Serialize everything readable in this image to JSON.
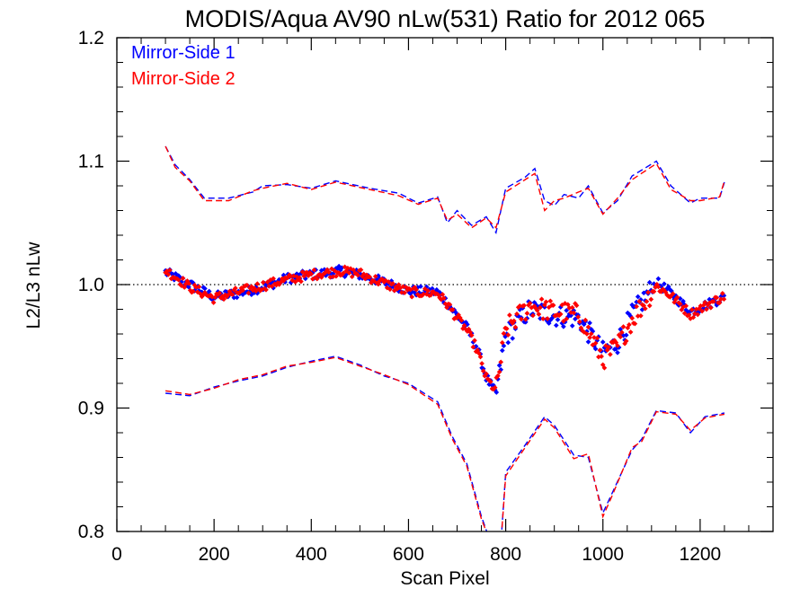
{
  "chart_data": {
    "type": "scatter",
    "title": "MODIS/Aqua AV90 nLw(531) Ratio for 2012 065",
    "xlabel": "Scan Pixel",
    "ylabel": "L2/L3 nLw",
    "xlim": [
      0,
      1350
    ],
    "ylim": [
      0.8,
      1.2
    ],
    "x_ticks": [
      0,
      200,
      400,
      600,
      800,
      1000,
      1200
    ],
    "y_ticks": [
      0.8,
      0.9,
      1.0,
      1.1,
      1.2
    ],
    "x_minor_step": 50,
    "y_minor_step": 0.02,
    "reference_line": 1.0,
    "legend_position": "top-left",
    "series": [
      {
        "name": "Mirror-Side 1",
        "color": "#0000ff",
        "points_mean": [
          [
            100,
            1.01
          ],
          [
            150,
            1.0
          ],
          [
            200,
            0.99
          ],
          [
            250,
            0.993
          ],
          [
            300,
            0.998
          ],
          [
            350,
            1.005
          ],
          [
            400,
            1.008
          ],
          [
            460,
            1.011
          ],
          [
            500,
            1.008
          ],
          [
            550,
            1.002
          ],
          [
            600,
            0.995
          ],
          [
            660,
            0.994
          ],
          [
            680,
            0.985
          ],
          [
            700,
            0.975
          ],
          [
            720,
            0.965
          ],
          [
            740,
            0.95
          ],
          [
            760,
            0.925
          ],
          [
            780,
            0.911
          ],
          [
            800,
            0.958
          ],
          [
            820,
            0.968
          ],
          [
            850,
            0.98
          ],
          [
            900,
            0.975
          ],
          [
            950,
            0.973
          ],
          [
            1000,
            0.945
          ],
          [
            1030,
            0.953
          ],
          [
            1060,
            0.975
          ],
          [
            1110,
            1.002
          ],
          [
            1140,
            0.993
          ],
          [
            1180,
            0.978
          ],
          [
            1250,
            0.99
          ]
        ],
        "upper_envelope": [
          [
            100,
            1.112
          ],
          [
            120,
            1.097
          ],
          [
            150,
            1.085
          ],
          [
            180,
            1.07
          ],
          [
            230,
            1.07
          ],
          [
            280,
            1.075
          ],
          [
            300,
            1.08
          ],
          [
            350,
            1.081
          ],
          [
            400,
            1.078
          ],
          [
            450,
            1.084
          ],
          [
            520,
            1.078
          ],
          [
            580,
            1.074
          ],
          [
            620,
            1.066
          ],
          [
            660,
            1.071
          ],
          [
            680,
            1.05
          ],
          [
            700,
            1.06
          ],
          [
            730,
            1.048
          ],
          [
            760,
            1.055
          ],
          [
            780,
            1.042
          ],
          [
            800,
            1.078
          ],
          [
            840,
            1.087
          ],
          [
            860,
            1.094
          ],
          [
            880,
            1.068
          ],
          [
            900,
            1.064
          ],
          [
            920,
            1.073
          ],
          [
            950,
            1.07
          ],
          [
            970,
            1.08
          ],
          [
            1000,
            1.058
          ],
          [
            1030,
            1.068
          ],
          [
            1060,
            1.088
          ],
          [
            1110,
            1.1
          ],
          [
            1140,
            1.08
          ],
          [
            1180,
            1.066
          ],
          [
            1200,
            1.07
          ],
          [
            1240,
            1.07
          ],
          [
            1250,
            1.083
          ]
        ],
        "lower_envelope": [
          [
            100,
            0.912
          ],
          [
            150,
            0.91
          ],
          [
            200,
            0.917
          ],
          [
            250,
            0.922
          ],
          [
            300,
            0.926
          ],
          [
            350,
            0.933
          ],
          [
            400,
            0.938
          ],
          [
            450,
            0.942
          ],
          [
            500,
            0.935
          ],
          [
            550,
            0.926
          ],
          [
            600,
            0.92
          ],
          [
            660,
            0.905
          ],
          [
            690,
            0.877
          ],
          [
            720,
            0.855
          ],
          [
            750,
            0.812
          ],
          [
            770,
            0.79
          ],
          [
            790,
            0.79
          ],
          [
            800,
            0.848
          ],
          [
            840,
            0.87
          ],
          [
            880,
            0.893
          ],
          [
            900,
            0.886
          ],
          [
            940,
            0.862
          ],
          [
            970,
            0.86
          ],
          [
            1000,
            0.815
          ],
          [
            1020,
            0.832
          ],
          [
            1060,
            0.866
          ],
          [
            1080,
            0.875
          ],
          [
            1110,
            0.898
          ],
          [
            1150,
            0.896
          ],
          [
            1180,
            0.88
          ],
          [
            1210,
            0.893
          ],
          [
            1250,
            0.896
          ]
        ]
      },
      {
        "name": "Mirror-Side 2",
        "color": "#ff0000",
        "points_mean": [
          [
            100,
            1.012
          ],
          [
            150,
            0.998
          ],
          [
            200,
            0.989
          ],
          [
            250,
            0.994
          ],
          [
            300,
            0.999
          ],
          [
            350,
            1.004
          ],
          [
            400,
            1.008
          ],
          [
            460,
            1.011
          ],
          [
            500,
            1.009
          ],
          [
            550,
            1.001
          ],
          [
            600,
            0.994
          ],
          [
            660,
            0.993
          ],
          [
            680,
            0.984
          ],
          [
            700,
            0.973
          ],
          [
            720,
            0.963
          ],
          [
            740,
            0.948
          ],
          [
            760,
            0.924
          ],
          [
            780,
            0.914
          ],
          [
            800,
            0.963
          ],
          [
            820,
            0.972
          ],
          [
            850,
            0.983
          ],
          [
            900,
            0.978
          ],
          [
            950,
            0.976
          ],
          [
            1000,
            0.94
          ],
          [
            1030,
            0.95
          ],
          [
            1060,
            0.972
          ],
          [
            1110,
            0.999
          ],
          [
            1140,
            0.991
          ],
          [
            1180,
            0.976
          ],
          [
            1250,
            0.991
          ]
        ],
        "upper_envelope": [
          [
            100,
            1.112
          ],
          [
            120,
            1.095
          ],
          [
            150,
            1.084
          ],
          [
            180,
            1.068
          ],
          [
            230,
            1.068
          ],
          [
            280,
            1.076
          ],
          [
            300,
            1.078
          ],
          [
            350,
            1.082
          ],
          [
            400,
            1.077
          ],
          [
            450,
            1.083
          ],
          [
            520,
            1.077
          ],
          [
            580,
            1.072
          ],
          [
            620,
            1.065
          ],
          [
            660,
            1.07
          ],
          [
            680,
            1.052
          ],
          [
            700,
            1.057
          ],
          [
            730,
            1.046
          ],
          [
            760,
            1.054
          ],
          [
            780,
            1.046
          ],
          [
            800,
            1.075
          ],
          [
            840,
            1.085
          ],
          [
            860,
            1.09
          ],
          [
            880,
            1.06
          ],
          [
            900,
            1.068
          ],
          [
            920,
            1.07
          ],
          [
            950,
            1.075
          ],
          [
            970,
            1.078
          ],
          [
            1000,
            1.057
          ],
          [
            1030,
            1.07
          ],
          [
            1060,
            1.085
          ],
          [
            1110,
            1.098
          ],
          [
            1140,
            1.077
          ],
          [
            1180,
            1.068
          ],
          [
            1200,
            1.068
          ],
          [
            1240,
            1.071
          ],
          [
            1250,
            1.084
          ]
        ],
        "lower_envelope": [
          [
            100,
            0.914
          ],
          [
            150,
            0.911
          ],
          [
            200,
            0.916
          ],
          [
            250,
            0.923
          ],
          [
            300,
            0.927
          ],
          [
            350,
            0.934
          ],
          [
            400,
            0.937
          ],
          [
            450,
            0.941
          ],
          [
            500,
            0.934
          ],
          [
            550,
            0.927
          ],
          [
            600,
            0.919
          ],
          [
            660,
            0.903
          ],
          [
            690,
            0.875
          ],
          [
            720,
            0.853
          ],
          [
            750,
            0.81
          ],
          [
            770,
            0.79
          ],
          [
            790,
            0.79
          ],
          [
            800,
            0.845
          ],
          [
            840,
            0.868
          ],
          [
            880,
            0.891
          ],
          [
            900,
            0.884
          ],
          [
            940,
            0.859
          ],
          [
            970,
            0.863
          ],
          [
            1000,
            0.812
          ],
          [
            1020,
            0.83
          ],
          [
            1060,
            0.868
          ],
          [
            1080,
            0.873
          ],
          [
            1110,
            0.897
          ],
          [
            1150,
            0.895
          ],
          [
            1180,
            0.882
          ],
          [
            1210,
            0.892
          ],
          [
            1250,
            0.895
          ]
        ]
      }
    ]
  }
}
